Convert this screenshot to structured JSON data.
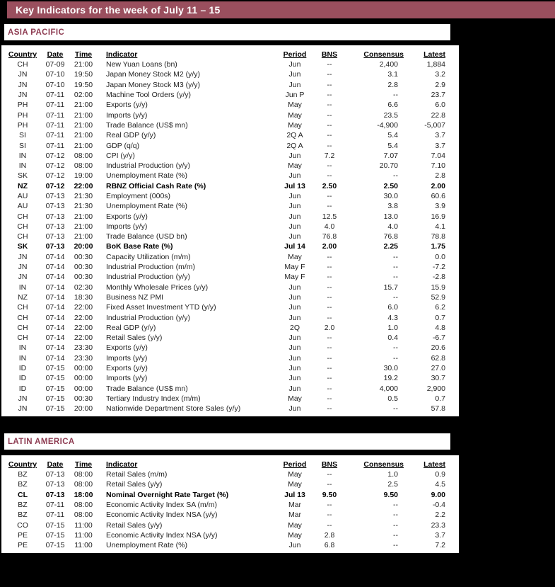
{
  "title": "Key Indicators for the week of July 11 – 15",
  "colors": {
    "page_background": "#000000",
    "title_bar_background": "#9a4f5e",
    "title_text": "#ffffff",
    "section_heading_text": "#8e3c52",
    "panel_background": "#ffffff",
    "table_text": "#222222"
  },
  "columns": [
    "Country",
    "Date",
    "Time",
    "Indicator",
    "Period",
    "BNS",
    "Consensus",
    "Latest"
  ],
  "sections": [
    {
      "name": "ASIA PACIFIC",
      "rows": [
        [
          "CH",
          "07-09",
          "21:00",
          "New Yuan Loans (bn)",
          "Jun",
          "--",
          "2,400",
          "1,884",
          0
        ],
        [
          "JN",
          "07-10",
          "19:50",
          "Japan Money Stock M2 (y/y)",
          "Jun",
          "--",
          "3.1",
          "3.2",
          0
        ],
        [
          "JN",
          "07-10",
          "19:50",
          "Japan Money Stock M3 (y/y)",
          "Jun",
          "--",
          "2.8",
          "2.9",
          0
        ],
        [
          "JN",
          "07-11",
          "02:00",
          "Machine Tool Orders (y/y)",
          "Jun P",
          "--",
          "--",
          "23.7",
          0
        ],
        [
          "PH",
          "07-11",
          "21:00",
          "Exports (y/y)",
          "May",
          "--",
          "6.6",
          "6.0",
          0
        ],
        [
          "PH",
          "07-11",
          "21:00",
          "Imports (y/y)",
          "May",
          "--",
          "23.5",
          "22.8",
          0
        ],
        [
          "PH",
          "07-11",
          "21:00",
          "Trade Balance (US$ mn)",
          "May",
          "--",
          "-4,900",
          "-5,007",
          0
        ],
        [
          "SI",
          "07-11",
          "21:00",
          "Real GDP (y/y)",
          "2Q A",
          "--",
          "5.4",
          "3.7",
          0
        ],
        [
          "SI",
          "07-11",
          "21:00",
          "GDP (q/q)",
          "2Q A",
          "--",
          "5.4",
          "3.7",
          0
        ],
        [
          "IN",
          "07-12",
          "08:00",
          "CPI (y/y)",
          "Jun",
          "7.2",
          "7.07",
          "7.04",
          0
        ],
        [
          "IN",
          "07-12",
          "08:00",
          "Industrial Production (y/y)",
          "May",
          "--",
          "20.70",
          "7.10",
          0
        ],
        [
          "SK",
          "07-12",
          "19:00",
          "Unemployment Rate (%)",
          "Jun",
          "--",
          "--",
          "2.8",
          0
        ],
        [
          "NZ",
          "07-12",
          "22:00",
          "RBNZ Official Cash Rate (%)",
          "Jul 13",
          "2.50",
          "2.50",
          "2.00",
          1
        ],
        [
          "AU",
          "07-13",
          "21:30",
          "Employment (000s)",
          "Jun",
          "--",
          "30.0",
          "60.6",
          0
        ],
        [
          "AU",
          "07-13",
          "21:30",
          "Unemployment Rate (%)",
          "Jun",
          "--",
          "3.8",
          "3.9",
          0
        ],
        [
          "CH",
          "07-13",
          "21:00",
          "Exports (y/y)",
          "Jun",
          "12.5",
          "13.0",
          "16.9",
          0
        ],
        [
          "CH",
          "07-13",
          "21:00",
          "Imports (y/y)",
          "Jun",
          "4.0",
          "4.0",
          "4.1",
          0
        ],
        [
          "CH",
          "07-13",
          "21:00",
          "Trade Balance (USD bn)",
          "Jun",
          "76.8",
          "76.8",
          "78.8",
          0
        ],
        [
          "SK",
          "07-13",
          "20:00",
          "BoK Base Rate (%)",
          "Jul 14",
          "2.00",
          "2.25",
          "1.75",
          1
        ],
        [
          "JN",
          "07-14",
          "00:30",
          "Capacity Utilization (m/m)",
          "May",
          "--",
          "--",
          "0.0",
          0
        ],
        [
          "JN",
          "07-14",
          "00:30",
          "Industrial Production (m/m)",
          "May F",
          "--",
          "--",
          "-7.2",
          0
        ],
        [
          "JN",
          "07-14",
          "00:30",
          "Industrial Production (y/y)",
          "May F",
          "--",
          "--",
          "-2.8",
          0
        ],
        [
          "IN",
          "07-14",
          "02:30",
          "Monthly Wholesale Prices (y/y)",
          "Jun",
          "--",
          "15.7",
          "15.9",
          0
        ],
        [
          "NZ",
          "07-14",
          "18:30",
          "Business NZ PMI",
          "Jun",
          "--",
          "--",
          "52.9",
          0
        ],
        [
          "CH",
          "07-14",
          "22:00",
          "Fixed Asset Investment YTD (y/y)",
          "Jun",
          "--",
          "6.0",
          "6.2",
          0
        ],
        [
          "CH",
          "07-14",
          "22:00",
          "Industrial Production (y/y)",
          "Jun",
          "--",
          "4.3",
          "0.7",
          0
        ],
        [
          "CH",
          "07-14",
          "22:00",
          "Real GDP (y/y)",
          "2Q",
          "2.0",
          "1.0",
          "4.8",
          0
        ],
        [
          "CH",
          "07-14",
          "22:00",
          "Retail Sales (y/y)",
          "Jun",
          "--",
          "0.4",
          "-6.7",
          0
        ],
        [
          "IN",
          "07-14",
          "23:30",
          "Exports (y/y)",
          "Jun",
          "--",
          "--",
          "20.6",
          0
        ],
        [
          "IN",
          "07-14",
          "23:30",
          "Imports (y/y)",
          "Jun",
          "--",
          "--",
          "62.8",
          0
        ],
        [
          "ID",
          "07-15",
          "00:00",
          "Exports (y/y)",
          "Jun",
          "--",
          "30.0",
          "27.0",
          0
        ],
        [
          "ID",
          "07-15",
          "00:00",
          "Imports (y/y)",
          "Jun",
          "--",
          "19.2",
          "30.7",
          0
        ],
        [
          "ID",
          "07-15",
          "00:00",
          "Trade Balance (US$ mn)",
          "Jun",
          "--",
          "4,000",
          "2,900",
          0
        ],
        [
          "JN",
          "07-15",
          "00:30",
          "Tertiary Industry Index (m/m)",
          "May",
          "--",
          "0.5",
          "0.7",
          0
        ],
        [
          "JN",
          "07-15",
          "20:00",
          "Nationwide Department Store Sales (y/y)",
          "Jun",
          "--",
          "--",
          "57.8",
          0
        ]
      ]
    },
    {
      "name": "LATIN AMERICA",
      "rows": [
        [
          "BZ",
          "07-13",
          "08:00",
          "Retail Sales (m/m)",
          "May",
          "--",
          "1.0",
          "0.9",
          0
        ],
        [
          "BZ",
          "07-13",
          "08:00",
          "Retail Sales (y/y)",
          "May",
          "--",
          "2.5",
          "4.5",
          0
        ],
        [
          "CL",
          "07-13",
          "18:00",
          "Nominal Overnight Rate Target (%)",
          "Jul 13",
          "9.50",
          "9.50",
          "9.00",
          1
        ],
        [
          "BZ",
          "07-11",
          "08:00",
          "Economic Activity Index SA (m/m)",
          "Mar",
          "--",
          "--",
          "-0.4",
          0
        ],
        [
          "BZ",
          "07-11",
          "08:00",
          "Economic Activity Index NSA (y/y)",
          "Mar",
          "--",
          "--",
          "2.2",
          0
        ],
        [
          "CO",
          "07-15",
          "11:00",
          "Retail Sales (y/y)",
          "May",
          "--",
          "--",
          "23.3",
          0
        ],
        [
          "PE",
          "07-15",
          "11:00",
          "Economic Activity Index NSA (y/y)",
          "May",
          "2.8",
          "--",
          "3.7",
          0
        ],
        [
          "PE",
          "07-15",
          "11:00",
          "Unemployment Rate (%)",
          "Jun",
          "6.8",
          "--",
          "7.2",
          0
        ]
      ]
    }
  ]
}
